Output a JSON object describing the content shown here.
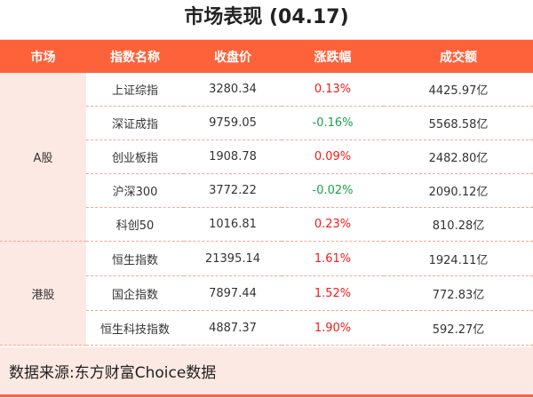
{
  "title": "市场表现 (04.17)",
  "columns": [
    "市场",
    "指数名称",
    "收盘价",
    "涨跌幅",
    "成交额"
  ],
  "colors": {
    "header": "#fe623a",
    "market_bg": "#fde9e3",
    "up": "#f41b1b",
    "down": "#1aa24a"
  },
  "groups": [
    {
      "market": "A股",
      "rows": [
        {
          "name": "上证综指",
          "close": "3280.34",
          "change": "0.13%",
          "dir": "up",
          "volume": "4425.97亿"
        },
        {
          "name": "深证成指",
          "close": "9759.05",
          "change": "-0.16%",
          "dir": "down",
          "volume": "5568.58亿"
        },
        {
          "name": "创业板指",
          "close": "1908.78",
          "change": "0.09%",
          "dir": "up",
          "volume": "2482.80亿"
        },
        {
          "name": "沪深300",
          "close": "3772.22",
          "change": "-0.02%",
          "dir": "down",
          "volume": "2090.12亿"
        },
        {
          "name": "科创50",
          "close": "1016.81",
          "change": "0.23%",
          "dir": "up",
          "volume": "810.28亿"
        }
      ]
    },
    {
      "market": "港股",
      "rows": [
        {
          "name": "恒生指数",
          "close": "21395.14",
          "change": "1.61%",
          "dir": "up",
          "volume": "1924.11亿"
        },
        {
          "name": "国企指数",
          "close": "7897.44",
          "change": "1.52%",
          "dir": "up",
          "volume": "772.83亿"
        },
        {
          "name": "恒生科技指数",
          "close": "4887.37",
          "change": "1.90%",
          "dir": "up",
          "volume": "592.27亿"
        }
      ]
    }
  ],
  "footer": "数据来源:东方财富Choice数据"
}
